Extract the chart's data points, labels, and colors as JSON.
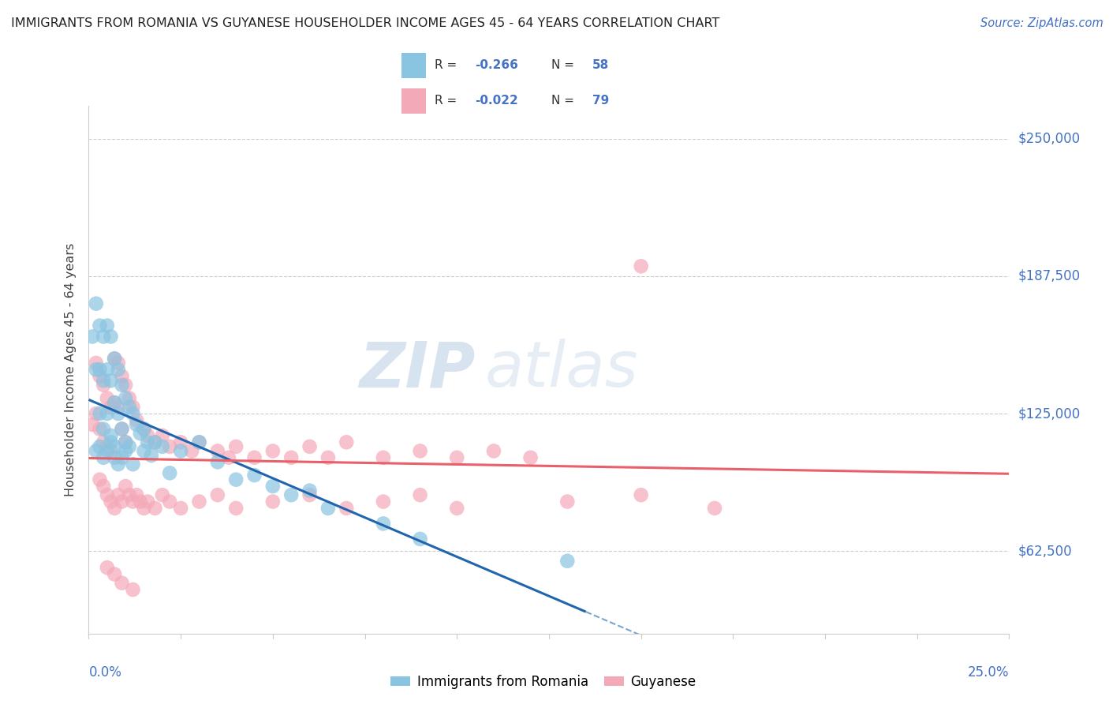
{
  "title": "IMMIGRANTS FROM ROMANIA VS GUYANESE HOUSEHOLDER INCOME AGES 45 - 64 YEARS CORRELATION CHART",
  "source": "Source: ZipAtlas.com",
  "ylabel": "Householder Income Ages 45 - 64 years",
  "yticks": [
    62500,
    125000,
    187500,
    250000
  ],
  "ytick_labels": [
    "$62,500",
    "$125,000",
    "$187,500",
    "$250,000"
  ],
  "xmin": 0.0,
  "xmax": 0.25,
  "ymin": 25000,
  "ymax": 265000,
  "romania_R": "-0.266",
  "romania_N": "58",
  "guyanese_R": "-0.022",
  "guyanese_N": "79",
  "romania_color": "#89c4e1",
  "guyanese_color": "#f4a9b8",
  "romania_line_color": "#2166ac",
  "guyanese_line_color": "#e8606a",
  "watermark_zip": "ZIP",
  "watermark_atlas": "atlas",
  "grid_color": "#cccccc",
  "romania_x": [
    0.001,
    0.002,
    0.002,
    0.003,
    0.003,
    0.003,
    0.004,
    0.004,
    0.004,
    0.005,
    0.005,
    0.005,
    0.006,
    0.006,
    0.006,
    0.007,
    0.007,
    0.007,
    0.008,
    0.008,
    0.009,
    0.009,
    0.01,
    0.01,
    0.011,
    0.011,
    0.012,
    0.013,
    0.014,
    0.015,
    0.015,
    0.016,
    0.017,
    0.018,
    0.02,
    0.022,
    0.025,
    0.03,
    0.035,
    0.04,
    0.045,
    0.05,
    0.055,
    0.06,
    0.065,
    0.08,
    0.09,
    0.13,
    0.002,
    0.003,
    0.004,
    0.005,
    0.006,
    0.007,
    0.008,
    0.009,
    0.01,
    0.012
  ],
  "romania_y": [
    160000,
    175000,
    145000,
    165000,
    145000,
    125000,
    160000,
    140000,
    118000,
    165000,
    145000,
    125000,
    160000,
    140000,
    115000,
    150000,
    130000,
    110000,
    145000,
    125000,
    138000,
    118000,
    132000,
    112000,
    128000,
    110000,
    125000,
    120000,
    116000,
    118000,
    108000,
    112000,
    106000,
    112000,
    110000,
    98000,
    108000,
    112000,
    103000,
    95000,
    97000,
    92000,
    88000,
    90000,
    82000,
    75000,
    68000,
    58000,
    108000,
    110000,
    105000,
    108000,
    112000,
    105000,
    102000,
    105000,
    108000,
    102000
  ],
  "guyanese_x": [
    0.001,
    0.002,
    0.002,
    0.003,
    0.003,
    0.004,
    0.004,
    0.005,
    0.005,
    0.006,
    0.006,
    0.007,
    0.007,
    0.008,
    0.008,
    0.009,
    0.009,
    0.01,
    0.01,
    0.011,
    0.012,
    0.013,
    0.015,
    0.016,
    0.018,
    0.02,
    0.022,
    0.025,
    0.028,
    0.03,
    0.035,
    0.038,
    0.04,
    0.045,
    0.05,
    0.055,
    0.06,
    0.065,
    0.07,
    0.08,
    0.09,
    0.1,
    0.11,
    0.12,
    0.15,
    0.003,
    0.004,
    0.005,
    0.006,
    0.007,
    0.008,
    0.009,
    0.01,
    0.011,
    0.012,
    0.013,
    0.014,
    0.015,
    0.016,
    0.018,
    0.02,
    0.022,
    0.025,
    0.03,
    0.035,
    0.04,
    0.05,
    0.06,
    0.07,
    0.08,
    0.09,
    0.1,
    0.13,
    0.15,
    0.17,
    0.005,
    0.007,
    0.009,
    0.012
  ],
  "guyanese_y": [
    120000,
    148000,
    125000,
    142000,
    118000,
    138000,
    112000,
    132000,
    110000,
    128000,
    108000,
    150000,
    130000,
    148000,
    128000,
    142000,
    118000,
    138000,
    112000,
    132000,
    128000,
    122000,
    118000,
    115000,
    112000,
    115000,
    110000,
    112000,
    108000,
    112000,
    108000,
    105000,
    110000,
    105000,
    108000,
    105000,
    110000,
    105000,
    112000,
    105000,
    108000,
    105000,
    108000,
    105000,
    192000,
    95000,
    92000,
    88000,
    85000,
    82000,
    88000,
    85000,
    92000,
    88000,
    85000,
    88000,
    85000,
    82000,
    85000,
    82000,
    88000,
    85000,
    82000,
    85000,
    88000,
    82000,
    85000,
    88000,
    82000,
    85000,
    88000,
    82000,
    85000,
    88000,
    82000,
    55000,
    52000,
    48000,
    45000
  ]
}
